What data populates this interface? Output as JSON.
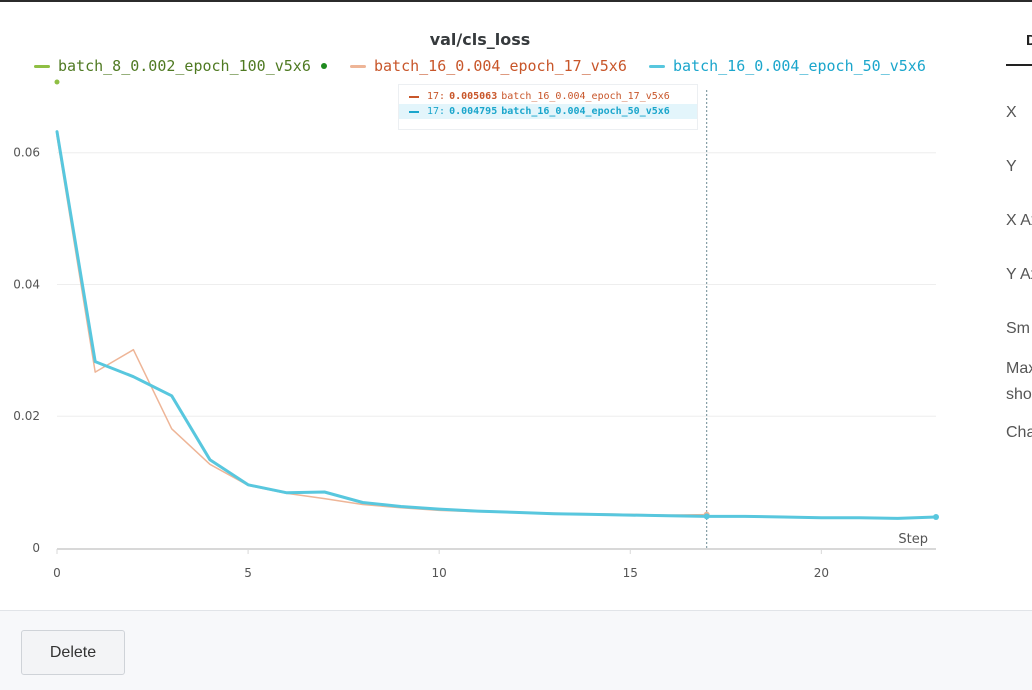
{
  "chart_data": {
    "type": "line",
    "title": "val/cls_loss",
    "xlabel": "Step",
    "ylabel": "",
    "xlim": [
      0,
      23
    ],
    "ylim": [
      0,
      0.068
    ],
    "x_ticks": [
      0,
      5,
      10,
      15,
      20
    ],
    "x_tick_labels": [
      "0",
      "5",
      "10",
      "15",
      "20"
    ],
    "y_ticks": [
      0,
      0.02,
      0.04,
      0.06
    ],
    "y_tick_labels": [
      "0",
      "0.02",
      "0.04",
      "0.06"
    ],
    "grid": true,
    "legend_position": "top",
    "series": [
      {
        "name": "batch_8_0.002_epoch_100_v5x6",
        "color": "#8fbf44",
        "label_color": "#4f7a22",
        "x": [],
        "values": []
      },
      {
        "name": "batch_16_0.004_epoch_17_v5x6",
        "color": "#eeb597",
        "label_color": "#c8562a",
        "x": [
          0,
          1,
          2,
          3,
          4,
          5,
          6,
          7,
          8,
          9,
          10,
          11,
          12,
          13,
          14,
          15,
          16,
          17
        ],
        "values": [
          0.0625,
          0.0267,
          0.0301,
          0.0181,
          0.0127,
          0.0095,
          0.0083,
          0.0075,
          0.0066,
          0.0061,
          0.0057,
          0.0055,
          0.0054,
          0.0053,
          0.0052,
          0.0051,
          0.005,
          0.005063
        ]
      },
      {
        "name": "batch_16_0.004_epoch_50_v5x6",
        "color": "#58c7de",
        "label_color": "#1ba6cc",
        "x": [
          0,
          1,
          2,
          3,
          4,
          5,
          6,
          7,
          8,
          9,
          10,
          11,
          12,
          13,
          14,
          15,
          16,
          17,
          18,
          19,
          20,
          21,
          22,
          23
        ],
        "values": [
          0.0632,
          0.0283,
          0.026,
          0.0231,
          0.0134,
          0.0096,
          0.0084,
          0.0085,
          0.0069,
          0.0063,
          0.0059,
          0.0056,
          0.0054,
          0.0052,
          0.0051,
          0.005,
          0.0049,
          0.004795,
          0.0048,
          0.0047,
          0.0046,
          0.0046,
          0.0045,
          0.0047
        ]
      }
    ],
    "hover": {
      "step": 17,
      "rows": [
        {
          "step_label": "17:",
          "value": "0.005063",
          "name": "batch_16_0.004_epoch_17_v5x6",
          "color": "#c8562a",
          "highlight": false
        },
        {
          "step_label": "17:",
          "value": "0.004795",
          "name": "batch_16_0.004_epoch_50_v5x6",
          "color": "#1ba6cc",
          "highlight": true
        }
      ]
    }
  },
  "side_panel": {
    "tab_label": "D",
    "labels": [
      "X",
      "Y",
      "X Ax",
      "Y Ax",
      "Sm",
      "Max",
      "sho",
      "Cha"
    ]
  },
  "footer": {
    "delete_label": "Delete"
  }
}
